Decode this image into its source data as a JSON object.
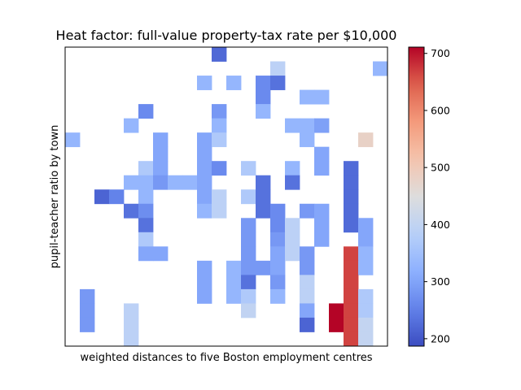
{
  "chart_data": {
    "type": "heatmap",
    "title": "Heat factor: full-value property-tax rate per $10,000",
    "xlabel": "weighted distances to five Boston employment centres",
    "ylabel": "pupil-teacher ratio by town",
    "nrows": 21,
    "ncols": 22,
    "colorbar": {
      "min": 187,
      "max": 711,
      "ticks": [
        200,
        300,
        400,
        500,
        600,
        700
      ],
      "colormap": "coolwarm"
    },
    "cells": [
      [
        0,
        10,
        222
      ],
      [
        1,
        14,
        390
      ],
      [
        1,
        21,
        330
      ],
      [
        2,
        9,
        330
      ],
      [
        2,
        11,
        330
      ],
      [
        2,
        13,
        264
      ],
      [
        2,
        14,
        233
      ],
      [
        3,
        13,
        264
      ],
      [
        3,
        16,
        330
      ],
      [
        3,
        17,
        330
      ],
      [
        4,
        5,
        264
      ],
      [
        4,
        10,
        284
      ],
      [
        4,
        13,
        330
      ],
      [
        5,
        4,
        330
      ],
      [
        5,
        10,
        330
      ],
      [
        5,
        15,
        330
      ],
      [
        5,
        16,
        330
      ],
      [
        5,
        17,
        296
      ],
      [
        6,
        0,
        330
      ],
      [
        6,
        6,
        304
      ],
      [
        6,
        9,
        304
      ],
      [
        6,
        10,
        370
      ],
      [
        6,
        16,
        330
      ],
      [
        6,
        20,
        480
      ],
      [
        7,
        6,
        304
      ],
      [
        7,
        9,
        304
      ],
      [
        7,
        17,
        304
      ],
      [
        8,
        5,
        370
      ],
      [
        8,
        6,
        304
      ],
      [
        8,
        9,
        304
      ],
      [
        8,
        10,
        264
      ],
      [
        8,
        12,
        370
      ],
      [
        8,
        15,
        330
      ],
      [
        8,
        17,
        304
      ],
      [
        8,
        19,
        224
      ],
      [
        9,
        4,
        330
      ],
      [
        9,
        5,
        330
      ],
      [
        9,
        6,
        284
      ],
      [
        9,
        7,
        330
      ],
      [
        9,
        8,
        330
      ],
      [
        9,
        9,
        304
      ],
      [
        9,
        13,
        233
      ],
      [
        9,
        15,
        233
      ],
      [
        9,
        19,
        224
      ],
      [
        10,
        2,
        216
      ],
      [
        10,
        3,
        254
      ],
      [
        10,
        5,
        330
      ],
      [
        10,
        9,
        304
      ],
      [
        10,
        10,
        390
      ],
      [
        10,
        12,
        370
      ],
      [
        10,
        13,
        233
      ],
      [
        10,
        19,
        224
      ],
      [
        11,
        4,
        233
      ],
      [
        11,
        5,
        270
      ],
      [
        11,
        9,
        330
      ],
      [
        11,
        10,
        390
      ],
      [
        11,
        13,
        233
      ],
      [
        11,
        14,
        264
      ],
      [
        11,
        16,
        284
      ],
      [
        11,
        17,
        304
      ],
      [
        11,
        19,
        224
      ],
      [
        12,
        5,
        233
      ],
      [
        12,
        12,
        284
      ],
      [
        12,
        14,
        264
      ],
      [
        12,
        15,
        390
      ],
      [
        12,
        17,
        304
      ],
      [
        12,
        19,
        224
      ],
      [
        12,
        20,
        304
      ],
      [
        13,
        5,
        370
      ],
      [
        13,
        12,
        284
      ],
      [
        13,
        14,
        284
      ],
      [
        13,
        15,
        390
      ],
      [
        13,
        17,
        304
      ],
      [
        13,
        20,
        304
      ],
      [
        14,
        5,
        304
      ],
      [
        14,
        6,
        304
      ],
      [
        14,
        12,
        284
      ],
      [
        14,
        14,
        304
      ],
      [
        14,
        15,
        390
      ],
      [
        14,
        16,
        284
      ],
      [
        14,
        19,
        666
      ],
      [
        14,
        20,
        330
      ],
      [
        15,
        9,
        304
      ],
      [
        15,
        11,
        330
      ],
      [
        15,
        12,
        284
      ],
      [
        15,
        13,
        284
      ],
      [
        15,
        14,
        304
      ],
      [
        15,
        16,
        284
      ],
      [
        15,
        19,
        666
      ],
      [
        15,
        20,
        330
      ],
      [
        16,
        9,
        304
      ],
      [
        16,
        11,
        330
      ],
      [
        16,
        12,
        233
      ],
      [
        16,
        14,
        284
      ],
      [
        16,
        16,
        390
      ],
      [
        16,
        19,
        666
      ],
      [
        17,
        1,
        284
      ],
      [
        17,
        9,
        304
      ],
      [
        17,
        11,
        330
      ],
      [
        17,
        12,
        370
      ],
      [
        17,
        14,
        330
      ],
      [
        17,
        16,
        390
      ],
      [
        17,
        19,
        666
      ],
      [
        17,
        20,
        370
      ],
      [
        18,
        1,
        284
      ],
      [
        18,
        4,
        390
      ],
      [
        18,
        12,
        400
      ],
      [
        18,
        16,
        304
      ],
      [
        18,
        18,
        711
      ],
      [
        18,
        19,
        666
      ],
      [
        18,
        20,
        370
      ],
      [
        19,
        1,
        284
      ],
      [
        19,
        4,
        390
      ],
      [
        19,
        16,
        216
      ],
      [
        19,
        18,
        711
      ],
      [
        19,
        19,
        666
      ],
      [
        19,
        20,
        403
      ],
      [
        20,
        4,
        390
      ],
      [
        20,
        19,
        666
      ],
      [
        20,
        20,
        403
      ]
    ]
  }
}
